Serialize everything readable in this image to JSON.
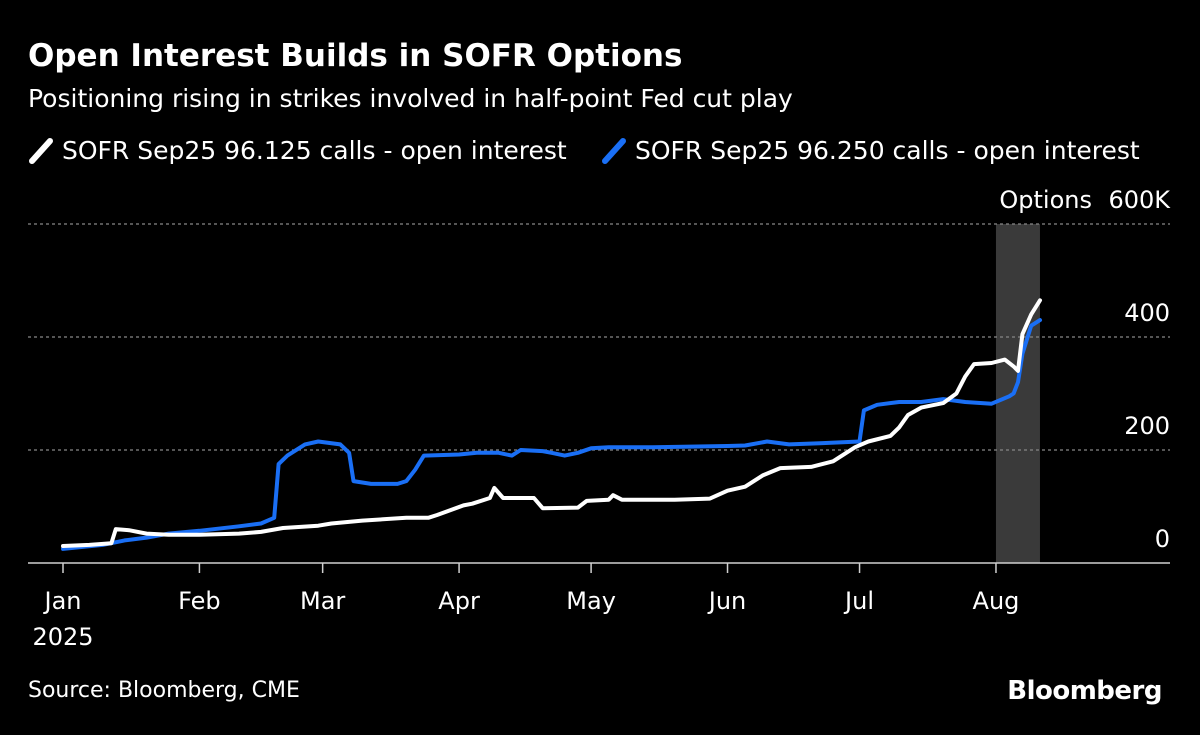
{
  "header": {
    "title": "Open Interest Builds in SOFR Options",
    "subtitle": "Positioning rising in strikes involved in half-point Fed cut play"
  },
  "footer": {
    "source": "Source: Bloomberg, CME",
    "brand": "Bloomberg"
  },
  "colors": {
    "background": "#000000",
    "series_white": "#ffffff",
    "series_blue": "#1a6ff5",
    "highlight": "#3a3a3a",
    "grid": "#888888"
  },
  "chart_data": {
    "type": "line",
    "unit_label": "Options",
    "y_ticks": [
      {
        "value": 0,
        "label": "0"
      },
      {
        "value": 200,
        "label": "200"
      },
      {
        "value": 400,
        "label": "400"
      },
      {
        "value": 600,
        "label": "600K"
      }
    ],
    "ylim": [
      0,
      600
    ],
    "grid": true,
    "x_ticks": [
      {
        "date": "2025-01-01",
        "label": "Jan",
        "sub": "2025"
      },
      {
        "date": "2025-02-01",
        "label": "Feb"
      },
      {
        "date": "2025-03-01",
        "label": "Mar"
      },
      {
        "date": "2025-04-01",
        "label": "Apr"
      },
      {
        "date": "2025-05-01",
        "label": "May"
      },
      {
        "date": "2025-06-01",
        "label": "Jun"
      },
      {
        "date": "2025-07-01",
        "label": "Jul"
      },
      {
        "date": "2025-08-01",
        "label": "Aug"
      }
    ],
    "xlim": [
      "2025-01-01",
      "2025-09-05"
    ],
    "highlight_range": [
      "2025-08-01",
      "2025-08-11"
    ],
    "series": [
      {
        "name": "SOFR Sep25 96.125 calls - open interest",
        "color": "#ffffff",
        "points": [
          [
            "2025-01-01",
            30
          ],
          [
            "2025-01-07",
            32
          ],
          [
            "2025-01-12",
            35
          ],
          [
            "2025-01-13",
            60
          ],
          [
            "2025-01-16",
            58
          ],
          [
            "2025-01-20",
            52
          ],
          [
            "2025-01-25",
            50
          ],
          [
            "2025-02-01",
            50
          ],
          [
            "2025-02-10",
            52
          ],
          [
            "2025-02-15",
            55
          ],
          [
            "2025-02-20",
            62
          ],
          [
            "2025-02-28",
            66
          ],
          [
            "2025-03-03",
            70
          ],
          [
            "2025-03-10",
            75
          ],
          [
            "2025-03-20",
            80
          ],
          [
            "2025-03-25",
            80
          ],
          [
            "2025-03-27",
            85
          ],
          [
            "2025-04-02",
            102
          ],
          [
            "2025-04-04",
            105
          ],
          [
            "2025-04-08",
            115
          ],
          [
            "2025-04-09",
            133
          ],
          [
            "2025-04-11",
            115
          ],
          [
            "2025-04-18",
            115
          ],
          [
            "2025-04-20",
            97
          ],
          [
            "2025-04-28",
            98
          ],
          [
            "2025-04-30",
            110
          ],
          [
            "2025-05-05",
            112
          ],
          [
            "2025-05-06",
            120
          ],
          [
            "2025-05-08",
            112
          ],
          [
            "2025-05-20",
            112
          ],
          [
            "2025-05-28",
            114
          ],
          [
            "2025-06-01",
            128
          ],
          [
            "2025-06-05",
            135
          ],
          [
            "2025-06-09",
            155
          ],
          [
            "2025-06-13",
            168
          ],
          [
            "2025-06-20",
            170
          ],
          [
            "2025-06-25",
            180
          ],
          [
            "2025-06-30",
            205
          ],
          [
            "2025-07-03",
            215
          ],
          [
            "2025-07-08",
            225
          ],
          [
            "2025-07-10",
            240
          ],
          [
            "2025-07-12",
            262
          ],
          [
            "2025-07-15",
            275
          ],
          [
            "2025-07-20",
            283
          ],
          [
            "2025-07-23",
            300
          ],
          [
            "2025-07-25",
            330
          ],
          [
            "2025-07-27",
            352
          ],
          [
            "2025-07-31",
            354
          ],
          [
            "2025-08-03",
            360
          ],
          [
            "2025-08-05",
            348
          ],
          [
            "2025-08-06",
            340
          ],
          [
            "2025-08-07",
            405
          ],
          [
            "2025-08-09",
            440
          ],
          [
            "2025-08-11",
            465
          ]
        ]
      },
      {
        "name": "SOFR Sep25 96.250 calls - open interest",
        "color": "#1a6ff5",
        "points": [
          [
            "2025-01-01",
            25
          ],
          [
            "2025-01-10",
            32
          ],
          [
            "2025-01-15",
            40
          ],
          [
            "2025-01-20",
            45
          ],
          [
            "2025-01-25",
            52
          ],
          [
            "2025-02-01",
            57
          ],
          [
            "2025-02-10",
            65
          ],
          [
            "2025-02-15",
            70
          ],
          [
            "2025-02-18",
            80
          ],
          [
            "2025-02-19",
            175
          ],
          [
            "2025-02-21",
            190
          ],
          [
            "2025-02-25",
            210
          ],
          [
            "2025-02-28",
            215
          ],
          [
            "2025-03-05",
            210
          ],
          [
            "2025-03-07",
            195
          ],
          [
            "2025-03-08",
            145
          ],
          [
            "2025-03-12",
            140
          ],
          [
            "2025-03-18",
            140
          ],
          [
            "2025-03-20",
            145
          ],
          [
            "2025-03-22",
            165
          ],
          [
            "2025-03-24",
            190
          ],
          [
            "2025-04-01",
            192
          ],
          [
            "2025-04-05",
            195
          ],
          [
            "2025-04-10",
            195
          ],
          [
            "2025-04-13",
            190
          ],
          [
            "2025-04-15",
            200
          ],
          [
            "2025-04-20",
            198
          ],
          [
            "2025-04-22",
            195
          ],
          [
            "2025-04-25",
            190
          ],
          [
            "2025-04-28",
            195
          ],
          [
            "2025-05-01",
            203
          ],
          [
            "2025-05-05",
            205
          ],
          [
            "2025-05-15",
            205
          ],
          [
            "2025-06-01",
            207
          ],
          [
            "2025-06-05",
            208
          ],
          [
            "2025-06-10",
            215
          ],
          [
            "2025-06-15",
            210
          ],
          [
            "2025-06-22",
            212
          ],
          [
            "2025-07-01",
            215
          ],
          [
            "2025-07-02",
            270
          ],
          [
            "2025-07-05",
            280
          ],
          [
            "2025-07-10",
            285
          ],
          [
            "2025-07-15",
            285
          ],
          [
            "2025-07-20",
            290
          ],
          [
            "2025-07-25",
            285
          ],
          [
            "2025-07-31",
            282
          ],
          [
            "2025-08-04",
            295
          ],
          [
            "2025-08-05",
            300
          ],
          [
            "2025-08-06",
            320
          ],
          [
            "2025-08-07",
            370
          ],
          [
            "2025-08-09",
            420
          ],
          [
            "2025-08-11",
            430
          ]
        ]
      }
    ]
  }
}
